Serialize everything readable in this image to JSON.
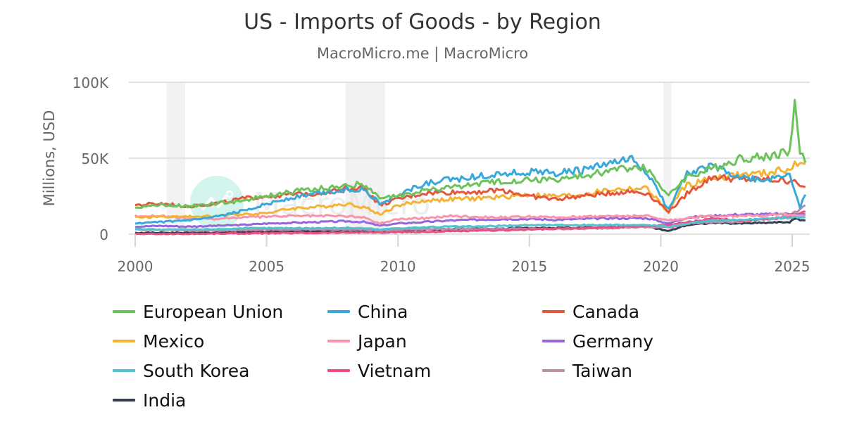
{
  "header": {
    "title": "US - Imports of Goods - by Region",
    "subtitle": "MacroMicro.me | MacroMicro"
  },
  "watermark": "MacroMicro",
  "chart_data": {
    "type": "line",
    "title": "US - Imports of Goods - by Region",
    "subtitle": "MacroMicro.me | MacroMicro",
    "xlabel": "",
    "ylabel": "Millions, USD",
    "xlim": [
      2000,
      2025.6
    ],
    "ylim": [
      0,
      100000
    ],
    "x_ticks": [
      "2000",
      "2005",
      "2010",
      "2015",
      "2020",
      "2025"
    ],
    "y_ticks": [
      "0",
      "50K",
      "100K"
    ],
    "grid": true,
    "legend_position": "bottom",
    "recession_bands": [
      [
        2001.2,
        2001.9
      ],
      [
        2008.0,
        2009.5
      ],
      [
        2020.1,
        2020.4
      ]
    ],
    "x": [
      2000,
      2001,
      2002,
      2003,
      2004,
      2005,
      2006,
      2007,
      2008,
      2008.7,
      2009.3,
      2010,
      2011,
      2012,
      2013,
      2014,
      2015,
      2016,
      2017,
      2018,
      2018.9,
      2019.5,
      2020.3,
      2020.8,
      2021,
      2022,
      2023,
      2024,
      2024.9,
      2025.1,
      2025.3,
      2025.5
    ],
    "series": [
      {
        "name": "European Union",
        "color": "#6cc35b",
        "values": [
          18000,
          19000,
          18500,
          20000,
          22000,
          25000,
          28000,
          30000,
          32000,
          33000,
          23000,
          25000,
          29000,
          31000,
          33000,
          35000,
          36000,
          36000,
          38000,
          42000,
          44000,
          43000,
          25000,
          35000,
          38000,
          43000,
          50000,
          51000,
          55000,
          84000,
          55000,
          47000
        ]
      },
      {
        "name": "China",
        "color": "#38a9d9",
        "values": [
          7000,
          8000,
          9000,
          11000,
          15000,
          20000,
          24000,
          27000,
          29000,
          30000,
          20000,
          26000,
          33000,
          36000,
          38000,
          40000,
          41000,
          40000,
          42000,
          46000,
          49000,
          40000,
          16000,
          36000,
          40000,
          45000,
          37000,
          35000,
          40000,
          28000,
          18000,
          26000
        ]
      },
      {
        "name": "Canada",
        "color": "#e4573d",
        "values": [
          19000,
          20000,
          18500,
          20000,
          23000,
          25000,
          26000,
          27000,
          30000,
          31000,
          19000,
          23000,
          27000,
          27500,
          28000,
          29000,
          25000,
          23000,
          25000,
          27000,
          28000,
          27000,
          15000,
          23000,
          27000,
          38000,
          36000,
          36000,
          35000,
          37000,
          30000,
          31000
        ]
      },
      {
        "name": "Mexico",
        "color": "#f5b335",
        "values": [
          11000,
          11500,
          11500,
          12000,
          13000,
          14000,
          17000,
          18000,
          20000,
          18000,
          13000,
          19000,
          22000,
          23000,
          23500,
          24500,
          26000,
          25000,
          26000,
          29000,
          30000,
          30000,
          14000,
          30000,
          32000,
          37000,
          39000,
          40000,
          43000,
          46000,
          45000,
          46000
        ]
      },
      {
        "name": "Japan",
        "color": "#f994ac",
        "values": [
          12000,
          12000,
          10000,
          10000,
          11000,
          11500,
          12000,
          12000,
          12000,
          11000,
          7000,
          10000,
          10500,
          12000,
          11500,
          11000,
          11500,
          11000,
          11500,
          12000,
          12000,
          12000,
          9000,
          10000,
          11000,
          12000,
          12000,
          12500,
          13000,
          13000,
          12000,
          12000
        ]
      },
      {
        "name": "Germany",
        "color": "#9466e0",
        "values": [
          5000,
          5500,
          5000,
          5500,
          6000,
          7000,
          7500,
          8000,
          8500,
          8000,
          5500,
          7000,
          8000,
          9000,
          9500,
          10000,
          10000,
          9500,
          10000,
          10500,
          10500,
          10500,
          7000,
          10000,
          11000,
          12000,
          13000,
          13000,
          13500,
          14000,
          13000,
          13000
        ]
      },
      {
        "name": "South Korea",
        "color": "#4fc3cf",
        "values": [
          3500,
          3000,
          3000,
          3200,
          3800,
          4000,
          4000,
          4000,
          4200,
          4000,
          3000,
          4000,
          4500,
          5000,
          5000,
          5500,
          6000,
          6000,
          6000,
          6000,
          6000,
          6000,
          5000,
          6500,
          7000,
          9000,
          9500,
          10000,
          11000,
          11500,
          11000,
          11000
        ]
      },
      {
        "name": "Vietnam",
        "color": "#ec4d85",
        "values": [
          100,
          100,
          200,
          400,
          500,
          600,
          800,
          900,
          1100,
          1200,
          1000,
          1300,
          1500,
          1800,
          2200,
          2600,
          3000,
          3500,
          4000,
          4500,
          5000,
          5500,
          6000,
          7500,
          8000,
          10000,
          9000,
          10000,
          11000,
          13000,
          14000,
          15000
        ]
      },
      {
        "name": "Taiwan",
        "color": "#bb8fa7",
        "values": [
          3000,
          2800,
          2500,
          2500,
          2800,
          3000,
          3100,
          3000,
          3000,
          3000,
          2300,
          3000,
          3400,
          3400,
          3500,
          3500,
          3500,
          3500,
          3500,
          4000,
          4500,
          4500,
          4500,
          6000,
          7000,
          8000,
          8000,
          10000,
          12000,
          14000,
          17000,
          19000
        ]
      },
      {
        "name": "India",
        "color": "#363d4f",
        "values": [
          900,
          900,
          1000,
          1100,
          1300,
          1600,
          1800,
          2000,
          2200,
          2000,
          1600,
          2500,
          3000,
          3300,
          3500,
          3800,
          4000,
          4000,
          4300,
          4500,
          5000,
          5000,
          2000,
          5000,
          6000,
          7500,
          7000,
          7500,
          8000,
          10000,
          9500,
          9000
        ]
      }
    ]
  },
  "legend": {
    "items": [
      {
        "label": "European Union",
        "color": "#6cc35b"
      },
      {
        "label": "China",
        "color": "#38a9d9"
      },
      {
        "label": "Canada",
        "color": "#e4573d"
      },
      {
        "label": "Mexico",
        "color": "#f5b335"
      },
      {
        "label": "Japan",
        "color": "#f994ac"
      },
      {
        "label": "Germany",
        "color": "#9466e0"
      },
      {
        "label": "South Korea",
        "color": "#4fc3cf"
      },
      {
        "label": "Vietnam",
        "color": "#ec4d85"
      },
      {
        "label": "Taiwan",
        "color": "#bb8fa7"
      },
      {
        "label": "India",
        "color": "#363d4f"
      }
    ]
  }
}
